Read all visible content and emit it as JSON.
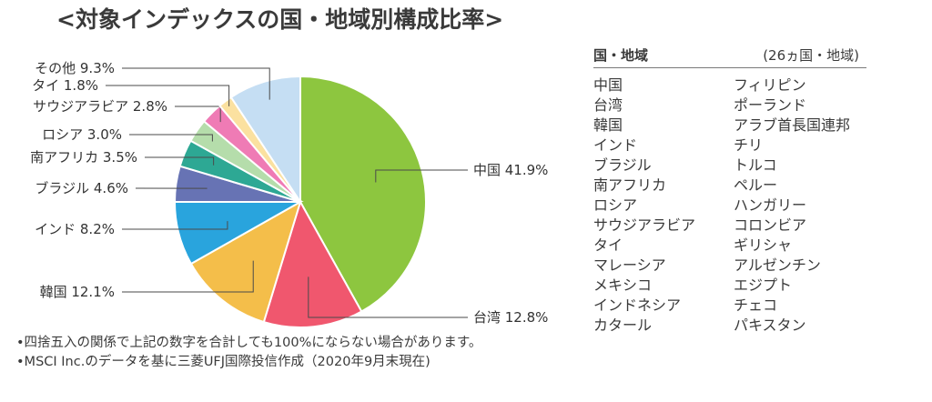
{
  "title": "<対象インデックスの国・地域別構成比率>",
  "chart_data": {
    "type": "pie",
    "title": "",
    "slices": [
      {
        "label": "中国",
        "value": 41.9,
        "display": "中国 41.9%",
        "color": "#8dc63f"
      },
      {
        "label": "台湾",
        "value": 12.8,
        "display": "台湾 12.8%",
        "color": "#f0576e"
      },
      {
        "label": "韓国",
        "value": 12.1,
        "display": "韓国 12.1%",
        "color": "#f4be4a"
      },
      {
        "label": "インド",
        "value": 8.2,
        "display": "インド 8.2%",
        "color": "#29a4dd"
      },
      {
        "label": "ブラジル",
        "value": 4.6,
        "display": "ブラジル 4.6%",
        "color": "#6773b4"
      },
      {
        "label": "南アフリカ",
        "value": 3.5,
        "display": "南アフリカ 3.5%",
        "color": "#2da894"
      },
      {
        "label": "ロシア",
        "value": 3.0,
        "display": "ロシア 3.0%",
        "color": "#b5ddab"
      },
      {
        "label": "サウジアラビア",
        "value": 2.8,
        "display": "サウジアラビア 2.8%",
        "color": "#ef7bb5"
      },
      {
        "label": "タイ",
        "value": 1.8,
        "display": "タイ 1.8%",
        "color": "#fbe1a0"
      },
      {
        "label": "その他",
        "value": 9.3,
        "display": "その他 9.3%",
        "color": "#c5def3"
      }
    ]
  },
  "notes": [
    "•四捨五入の関係で上記の数字を合計しても100%にならない場合があります。",
    "•MSCI Inc.のデータを基に三菱UFJ国際投信作成（2020年9月末現在)"
  ],
  "country_panel": {
    "header_left": "国・地域",
    "header_right": "(26ヵ国・地域)",
    "left_column": [
      "中国",
      "台湾",
      "韓国",
      "インド",
      "ブラジル",
      "南アフリカ",
      "ロシア",
      "サウジアラビア",
      "タイ",
      "マレーシア",
      "メキシコ",
      "インドネシア",
      "カタール"
    ],
    "right_column": [
      "フィリピン",
      "ポーランド",
      "アラブ首長国連邦",
      "チリ",
      "トルコ",
      "ペルー",
      "ハンガリー",
      "コロンビア",
      "ギリシャ",
      "アルゼンチン",
      "エジプト",
      "チェコ",
      "パキスタン"
    ]
  }
}
